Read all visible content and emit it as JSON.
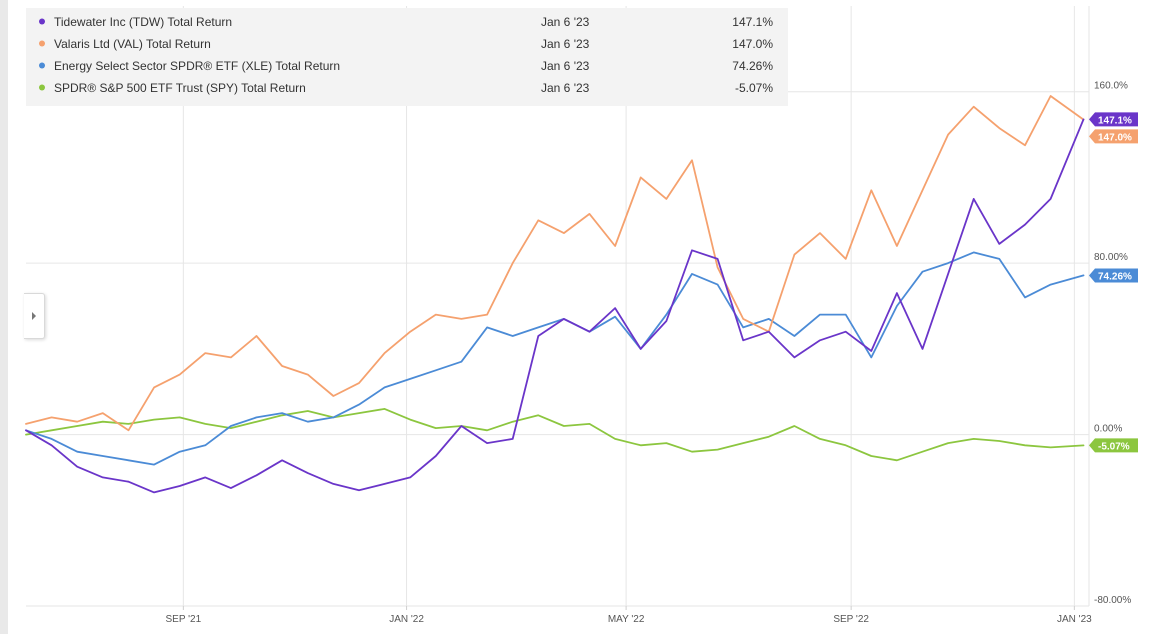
{
  "chart_data": {
    "type": "line",
    "xlim": [
      "2021-06-07",
      "2023-01-09"
    ],
    "ylim": [
      -80,
      200
    ],
    "y_ticks": [
      {
        "value": 160,
        "label": "160.0%"
      },
      {
        "value": 80,
        "label": "80.00%"
      },
      {
        "value": 0,
        "label": "0.00%"
      },
      {
        "value": -80,
        "label": "-80.00%"
      }
    ],
    "x_ticks": [
      {
        "date": "2021-09-01",
        "label": "SEP '21"
      },
      {
        "date": "2022-01-01",
        "label": "JAN '22"
      },
      {
        "date": "2022-05-01",
        "label": "MAY '22"
      },
      {
        "date": "2022-09-01",
        "label": "SEP '22"
      },
      {
        "date": "2023-01-01",
        "label": "JAN '23"
      }
    ],
    "grid": true,
    "legend_position": "top-left",
    "series": [
      {
        "name": "Tidewater Inc (TDW) Total Return",
        "date_label": "Jan 6 '23",
        "value_label": "147.1%",
        "end_label": "147.1%",
        "color": "#6a35c9",
        "x": [
          "2021-06-07",
          "2021-06-21",
          "2021-07-05",
          "2021-07-19",
          "2021-08-02",
          "2021-08-16",
          "2021-08-30",
          "2021-09-13",
          "2021-09-27",
          "2021-10-11",
          "2021-10-25",
          "2021-11-08",
          "2021-11-22",
          "2021-12-06",
          "2021-12-20",
          "2022-01-03",
          "2022-01-17",
          "2022-01-31",
          "2022-02-14",
          "2022-02-28",
          "2022-03-14",
          "2022-03-28",
          "2022-04-11",
          "2022-04-25",
          "2022-05-09",
          "2022-05-23",
          "2022-06-06",
          "2022-06-20",
          "2022-07-04",
          "2022-07-18",
          "2022-08-01",
          "2022-08-15",
          "2022-08-29",
          "2022-09-12",
          "2022-09-26",
          "2022-10-10",
          "2022-10-24",
          "2022-11-07",
          "2022-11-21",
          "2022-12-05",
          "2022-12-19",
          "2023-01-06"
        ],
        "y": [
          2,
          -5,
          -15,
          -20,
          -22,
          -27,
          -24,
          -20,
          -25,
          -19,
          -12,
          -18,
          -23,
          -26,
          -23,
          -20,
          -10,
          4,
          -4,
          -2,
          46,
          54,
          48,
          59,
          40,
          53,
          86,
          82,
          44,
          48,
          36,
          44,
          48,
          39,
          66,
          40,
          75,
          110,
          89,
          98,
          110,
          147.1
        ]
      },
      {
        "name": "Valaris Ltd (VAL) Total Return",
        "date_label": "Jan 6 '23",
        "value_label": "147.0%",
        "end_label": "147.0%",
        "color": "#f5a16e",
        "x": [
          "2021-06-07",
          "2021-06-21",
          "2021-07-05",
          "2021-07-19",
          "2021-08-02",
          "2021-08-16",
          "2021-08-30",
          "2021-09-13",
          "2021-09-27",
          "2021-10-11",
          "2021-10-25",
          "2021-11-08",
          "2021-11-22",
          "2021-12-06",
          "2021-12-20",
          "2022-01-03",
          "2022-01-17",
          "2022-01-31",
          "2022-02-14",
          "2022-02-28",
          "2022-03-14",
          "2022-03-28",
          "2022-04-11",
          "2022-04-25",
          "2022-05-09",
          "2022-05-23",
          "2022-06-06",
          "2022-06-20",
          "2022-07-04",
          "2022-07-18",
          "2022-08-01",
          "2022-08-15",
          "2022-08-29",
          "2022-09-12",
          "2022-09-26",
          "2022-10-10",
          "2022-10-24",
          "2022-11-07",
          "2022-11-21",
          "2022-12-05",
          "2022-12-19",
          "2023-01-06"
        ],
        "y": [
          5,
          8,
          6,
          10,
          2,
          22,
          28,
          38,
          36,
          46,
          32,
          28,
          18,
          24,
          38,
          48,
          56,
          54,
          56,
          80,
          100,
          94,
          103,
          88,
          120,
          110,
          128,
          78,
          54,
          48,
          84,
          94,
          82,
          114,
          88,
          114,
          140,
          153,
          143,
          135,
          158,
          147.0
        ]
      },
      {
        "name": "Energy Select Sector SPDR® ETF (XLE) Total Return",
        "date_label": "Jan 6 '23",
        "value_label": "74.26%",
        "end_label": "74.26%",
        "color": "#4b8bd6",
        "x": [
          "2021-06-07",
          "2021-06-21",
          "2021-07-05",
          "2021-07-19",
          "2021-08-02",
          "2021-08-16",
          "2021-08-30",
          "2021-09-13",
          "2021-09-27",
          "2021-10-11",
          "2021-10-25",
          "2021-11-08",
          "2021-11-22",
          "2021-12-06",
          "2021-12-20",
          "2022-01-03",
          "2022-01-17",
          "2022-01-31",
          "2022-02-14",
          "2022-02-28",
          "2022-03-14",
          "2022-03-28",
          "2022-04-11",
          "2022-04-25",
          "2022-05-09",
          "2022-05-23",
          "2022-06-06",
          "2022-06-20",
          "2022-07-04",
          "2022-07-18",
          "2022-08-01",
          "2022-08-15",
          "2022-08-29",
          "2022-09-12",
          "2022-09-26",
          "2022-10-10",
          "2022-10-24",
          "2022-11-07",
          "2022-11-21",
          "2022-12-05",
          "2022-12-19",
          "2023-01-06"
        ],
        "y": [
          2,
          -2,
          -8,
          -10,
          -12,
          -14,
          -8,
          -5,
          4,
          8,
          10,
          6,
          8,
          14,
          22,
          26,
          30,
          34,
          50,
          46,
          50,
          54,
          48,
          55,
          40,
          56,
          75,
          70,
          50,
          54,
          46,
          56,
          56,
          36,
          60,
          76,
          80,
          85,
          82,
          64,
          70,
          74.26
        ]
      },
      {
        "name": "SPDR® S&P 500 ETF Trust (SPY) Total Return",
        "date_label": "Jan 6 '23",
        "value_label": "-5.07%",
        "end_label": "-5.07%",
        "color": "#8cc63f",
        "x": [
          "2021-06-07",
          "2021-06-21",
          "2021-07-05",
          "2021-07-19",
          "2021-08-02",
          "2021-08-16",
          "2021-08-30",
          "2021-09-13",
          "2021-09-27",
          "2021-10-11",
          "2021-10-25",
          "2021-11-08",
          "2021-11-22",
          "2021-12-06",
          "2021-12-20",
          "2022-01-03",
          "2022-01-17",
          "2022-01-31",
          "2022-02-14",
          "2022-02-28",
          "2022-03-14",
          "2022-03-28",
          "2022-04-11",
          "2022-04-25",
          "2022-05-09",
          "2022-05-23",
          "2022-06-06",
          "2022-06-20",
          "2022-07-04",
          "2022-07-18",
          "2022-08-01",
          "2022-08-15",
          "2022-08-29",
          "2022-09-12",
          "2022-09-26",
          "2022-10-10",
          "2022-10-24",
          "2022-11-07",
          "2022-11-21",
          "2022-12-05",
          "2022-12-19",
          "2023-01-06"
        ],
        "y": [
          0,
          2,
          4,
          6,
          5,
          7,
          8,
          5,
          3,
          6,
          9,
          11,
          8,
          10,
          12,
          7,
          3,
          4,
          2,
          6,
          9,
          4,
          5,
          -2,
          -5,
          -4,
          -8,
          -7,
          -4,
          -1,
          4,
          -2,
          -5,
          -10,
          -12,
          -8,
          -4,
          -2,
          -3,
          -5,
          -6,
          -5.07
        ]
      }
    ]
  }
}
